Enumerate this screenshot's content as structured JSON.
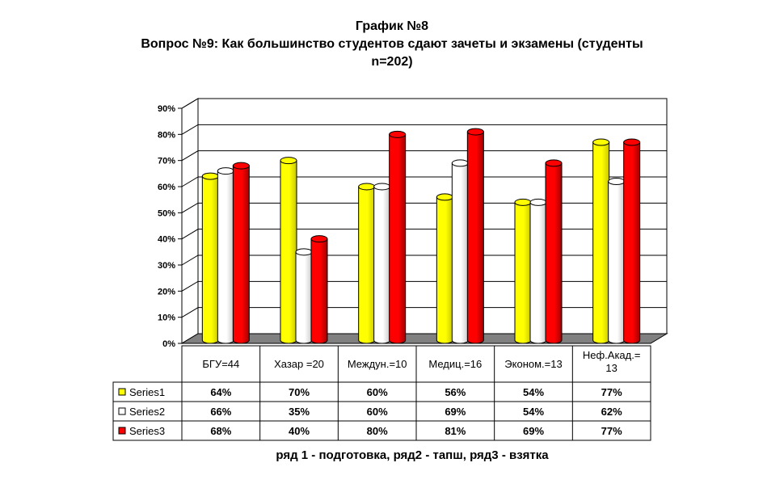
{
  "title": "График №8",
  "subtitle_line1": "Вопрос №9: Как большинство студентов сдают зачеты и экзамены  (студенты",
  "subtitle_line2": "n=202)",
  "footer": "ряд 1 - подготовка, ряд2 - тапш, ряд3 - взятка",
  "chart_data": {
    "type": "bar",
    "categories": [
      "БГУ=44",
      "Хазар =20",
      "Междун.=10",
      "Медиц.=16",
      "Эконом.=13",
      "Неф.Акад.= 13"
    ],
    "series": [
      {
        "name": "Series1",
        "values": [
          64,
          70,
          60,
          56,
          54,
          77
        ],
        "labels": [
          "64%",
          "70%",
          "60%",
          "56%",
          "54%",
          "77%"
        ],
        "color": "#ffff00"
      },
      {
        "name": "Series2",
        "values": [
          66,
          35,
          60,
          69,
          54,
          62
        ],
        "labels": [
          "66%",
          "35%",
          "60%",
          "69%",
          "54%",
          "62%"
        ],
        "color": "#ffffff"
      },
      {
        "name": "Series3",
        "values": [
          68,
          40,
          80,
          81,
          69,
          77
        ],
        "labels": [
          "68%",
          "40%",
          "80%",
          "81%",
          "69%",
          "77%"
        ],
        "color": "#ff0000"
      }
    ],
    "y_ticks": [
      "0%",
      "10%",
      "20%",
      "30%",
      "40%",
      "50%",
      "60%",
      "70%",
      "80%",
      "90%"
    ],
    "ylim": [
      0,
      90
    ],
    "grid": true,
    "data_table": true,
    "floor_color": "#808080"
  }
}
